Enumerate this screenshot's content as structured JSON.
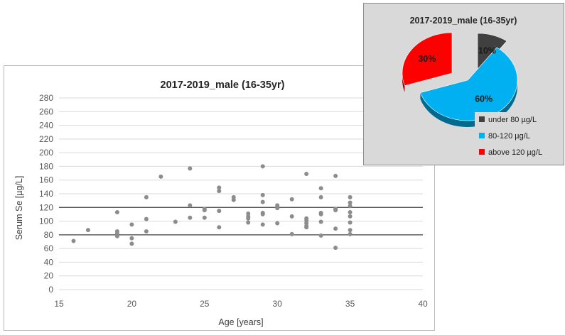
{
  "chart_data": [
    {
      "type": "scatter",
      "title": "2017-2019_male (16-35yr)",
      "xlabel": "Age [years]",
      "ylabel": "Serum Se [µg/L]",
      "xlim": [
        15,
        40
      ],
      "ylim": [
        0,
        280
      ],
      "xticks": [
        15,
        20,
        25,
        30,
        35,
        40
      ],
      "yticks": [
        0,
        20,
        40,
        60,
        80,
        100,
        120,
        140,
        160,
        180,
        200,
        220,
        240,
        260,
        280
      ],
      "grid": "horizontal",
      "reference_lines": [
        80,
        120
      ],
      "colors": {
        "points": "#8c8c8c",
        "reference_line": "#404040",
        "grid": "#d9d9d9"
      },
      "points": [
        [
          16,
          71
        ],
        [
          17,
          87
        ],
        [
          19,
          113
        ],
        [
          19,
          85
        ],
        [
          19,
          82
        ],
        [
          19,
          78
        ],
        [
          20,
          95
        ],
        [
          20,
          75
        ],
        [
          20,
          67
        ],
        [
          21,
          135
        ],
        [
          21,
          103
        ],
        [
          21,
          85
        ],
        [
          22,
          165
        ],
        [
          23,
          99
        ],
        [
          24,
          177
        ],
        [
          24,
          123
        ],
        [
          24,
          105
        ],
        [
          25,
          118
        ],
        [
          25,
          116
        ],
        [
          25,
          105
        ],
        [
          26,
          149
        ],
        [
          26,
          144
        ],
        [
          26,
          115
        ],
        [
          26,
          91
        ],
        [
          27,
          135
        ],
        [
          27,
          131
        ],
        [
          28,
          111
        ],
        [
          28,
          107
        ],
        [
          28,
          104
        ],
        [
          28,
          98
        ],
        [
          29,
          180
        ],
        [
          29,
          138
        ],
        [
          29,
          128
        ],
        [
          29,
          112
        ],
        [
          29,
          110
        ],
        [
          29,
          95
        ],
        [
          30,
          123
        ],
        [
          30,
          121
        ],
        [
          30,
          119
        ],
        [
          30,
          97
        ],
        [
          31,
          132
        ],
        [
          31,
          107
        ],
        [
          31,
          81
        ],
        [
          32,
          169
        ],
        [
          32,
          104
        ],
        [
          32,
          101
        ],
        [
          32,
          97
        ],
        [
          32,
          93
        ],
        [
          32,
          91
        ],
        [
          33,
          148
        ],
        [
          33,
          135
        ],
        [
          33,
          112
        ],
        [
          33,
          110
        ],
        [
          33,
          99
        ],
        [
          33,
          79
        ],
        [
          34,
          166
        ],
        [
          34,
          118
        ],
        [
          34,
          116
        ],
        [
          34,
          89
        ],
        [
          34,
          61
        ],
        [
          35,
          135
        ],
        [
          35,
          127
        ],
        [
          35,
          122
        ],
        [
          35,
          113
        ],
        [
          35,
          107
        ],
        [
          35,
          98
        ],
        [
          35,
          87
        ],
        [
          35,
          81
        ]
      ]
    },
    {
      "type": "pie",
      "title": "2017-2019_male (16-35yr)",
      "slices": [
        {
          "label": "under 80 µg/L",
          "value": 10,
          "display": "10%",
          "color": "#404040"
        },
        {
          "label": "80-120 µg/L",
          "value": 60,
          "display": "60%",
          "color": "#00b0f0"
        },
        {
          "label": "above 120 µg/L",
          "value": 30,
          "display": "30%",
          "color": "#ff0000"
        }
      ],
      "legend_position": "bottom-right",
      "exploded": true,
      "style": "3d"
    }
  ]
}
